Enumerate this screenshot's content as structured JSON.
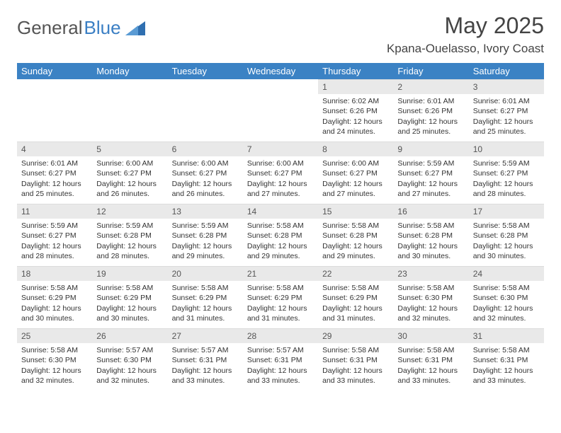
{
  "brand": {
    "word1": "General",
    "word2": "Blue"
  },
  "header": {
    "month_title": "May 2025",
    "location": "Kpana-Ouelasso, Ivory Coast"
  },
  "colors": {
    "header_bg": "#3b82c4",
    "header_text": "#ffffff",
    "daynum_bg": "#e9e9e9",
    "text": "#333333",
    "page_bg": "#ffffff"
  },
  "weekday_labels": [
    "Sunday",
    "Monday",
    "Tuesday",
    "Wednesday",
    "Thursday",
    "Friday",
    "Saturday"
  ],
  "first_weekday_index": 4,
  "days": [
    {
      "n": 1,
      "sunrise": "6:02 AM",
      "sunset": "6:26 PM",
      "dl1": "12 hours",
      "dl2": "and 24 minutes."
    },
    {
      "n": 2,
      "sunrise": "6:01 AM",
      "sunset": "6:26 PM",
      "dl1": "12 hours",
      "dl2": "and 25 minutes."
    },
    {
      "n": 3,
      "sunrise": "6:01 AM",
      "sunset": "6:27 PM",
      "dl1": "12 hours",
      "dl2": "and 25 minutes."
    },
    {
      "n": 4,
      "sunrise": "6:01 AM",
      "sunset": "6:27 PM",
      "dl1": "12 hours",
      "dl2": "and 25 minutes."
    },
    {
      "n": 5,
      "sunrise": "6:00 AM",
      "sunset": "6:27 PM",
      "dl1": "12 hours",
      "dl2": "and 26 minutes."
    },
    {
      "n": 6,
      "sunrise": "6:00 AM",
      "sunset": "6:27 PM",
      "dl1": "12 hours",
      "dl2": "and 26 minutes."
    },
    {
      "n": 7,
      "sunrise": "6:00 AM",
      "sunset": "6:27 PM",
      "dl1": "12 hours",
      "dl2": "and 27 minutes."
    },
    {
      "n": 8,
      "sunrise": "6:00 AM",
      "sunset": "6:27 PM",
      "dl1": "12 hours",
      "dl2": "and 27 minutes."
    },
    {
      "n": 9,
      "sunrise": "5:59 AM",
      "sunset": "6:27 PM",
      "dl1": "12 hours",
      "dl2": "and 27 minutes."
    },
    {
      "n": 10,
      "sunrise": "5:59 AM",
      "sunset": "6:27 PM",
      "dl1": "12 hours",
      "dl2": "and 28 minutes."
    },
    {
      "n": 11,
      "sunrise": "5:59 AM",
      "sunset": "6:27 PM",
      "dl1": "12 hours",
      "dl2": "and 28 minutes."
    },
    {
      "n": 12,
      "sunrise": "5:59 AM",
      "sunset": "6:28 PM",
      "dl1": "12 hours",
      "dl2": "and 28 minutes."
    },
    {
      "n": 13,
      "sunrise": "5:59 AM",
      "sunset": "6:28 PM",
      "dl1": "12 hours",
      "dl2": "and 29 minutes."
    },
    {
      "n": 14,
      "sunrise": "5:58 AM",
      "sunset": "6:28 PM",
      "dl1": "12 hours",
      "dl2": "and 29 minutes."
    },
    {
      "n": 15,
      "sunrise": "5:58 AM",
      "sunset": "6:28 PM",
      "dl1": "12 hours",
      "dl2": "and 29 minutes."
    },
    {
      "n": 16,
      "sunrise": "5:58 AM",
      "sunset": "6:28 PM",
      "dl1": "12 hours",
      "dl2": "and 30 minutes."
    },
    {
      "n": 17,
      "sunrise": "5:58 AM",
      "sunset": "6:28 PM",
      "dl1": "12 hours",
      "dl2": "and 30 minutes."
    },
    {
      "n": 18,
      "sunrise": "5:58 AM",
      "sunset": "6:29 PM",
      "dl1": "12 hours",
      "dl2": "and 30 minutes."
    },
    {
      "n": 19,
      "sunrise": "5:58 AM",
      "sunset": "6:29 PM",
      "dl1": "12 hours",
      "dl2": "and 30 minutes."
    },
    {
      "n": 20,
      "sunrise": "5:58 AM",
      "sunset": "6:29 PM",
      "dl1": "12 hours",
      "dl2": "and 31 minutes."
    },
    {
      "n": 21,
      "sunrise": "5:58 AM",
      "sunset": "6:29 PM",
      "dl1": "12 hours",
      "dl2": "and 31 minutes."
    },
    {
      "n": 22,
      "sunrise": "5:58 AM",
      "sunset": "6:29 PM",
      "dl1": "12 hours",
      "dl2": "and 31 minutes."
    },
    {
      "n": 23,
      "sunrise": "5:58 AM",
      "sunset": "6:30 PM",
      "dl1": "12 hours",
      "dl2": "and 32 minutes."
    },
    {
      "n": 24,
      "sunrise": "5:58 AM",
      "sunset": "6:30 PM",
      "dl1": "12 hours",
      "dl2": "and 32 minutes."
    },
    {
      "n": 25,
      "sunrise": "5:58 AM",
      "sunset": "6:30 PM",
      "dl1": "12 hours",
      "dl2": "and 32 minutes."
    },
    {
      "n": 26,
      "sunrise": "5:57 AM",
      "sunset": "6:30 PM",
      "dl1": "12 hours",
      "dl2": "and 32 minutes."
    },
    {
      "n": 27,
      "sunrise": "5:57 AM",
      "sunset": "6:31 PM",
      "dl1": "12 hours",
      "dl2": "and 33 minutes."
    },
    {
      "n": 28,
      "sunrise": "5:57 AM",
      "sunset": "6:31 PM",
      "dl1": "12 hours",
      "dl2": "and 33 minutes."
    },
    {
      "n": 29,
      "sunrise": "5:58 AM",
      "sunset": "6:31 PM",
      "dl1": "12 hours",
      "dl2": "and 33 minutes."
    },
    {
      "n": 30,
      "sunrise": "5:58 AM",
      "sunset": "6:31 PM",
      "dl1": "12 hours",
      "dl2": "and 33 minutes."
    },
    {
      "n": 31,
      "sunrise": "5:58 AM",
      "sunset": "6:31 PM",
      "dl1": "12 hours",
      "dl2": "and 33 minutes."
    }
  ],
  "labels": {
    "sunrise_prefix": "Sunrise: ",
    "sunset_prefix": "Sunset: ",
    "daylight_prefix": "Daylight: "
  }
}
